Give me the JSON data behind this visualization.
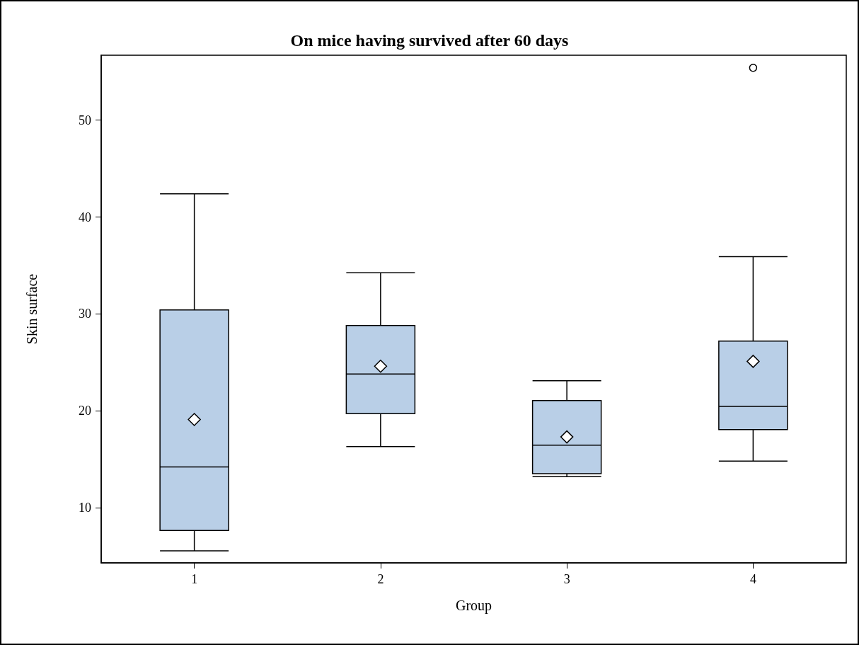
{
  "chart_data": {
    "type": "box",
    "title": "On mice having survived after 60 days",
    "xlabel": "Group",
    "ylabel": "Skin surface",
    "categories": [
      "1",
      "2",
      "3",
      "4"
    ],
    "series": [
      {
        "color": "#b9cfe7",
        "boxes": [
          {
            "low": 5.55,
            "q1": 7.65,
            "median": 14.2,
            "q3": 30.4,
            "high": 42.4,
            "mean": 19.1
          },
          {
            "low": 16.3,
            "q1": 19.7,
            "median": 23.8,
            "q3": 28.8,
            "high": 34.25,
            "mean": 24.6
          },
          {
            "low": 13.2,
            "q1": 13.5,
            "median": 16.45,
            "q3": 21.05,
            "high": 23.1,
            "mean": 17.3
          },
          {
            "low": 14.8,
            "q1": 18.05,
            "median": 20.45,
            "q3": 27.2,
            "high": 35.9,
            "mean": 25.1,
            "outliers": [
              55.4
            ]
          }
        ]
      }
    ],
    "ylim": [
      4.3,
      56.7
    ],
    "yticks": [
      10,
      20,
      30,
      40,
      50
    ]
  }
}
